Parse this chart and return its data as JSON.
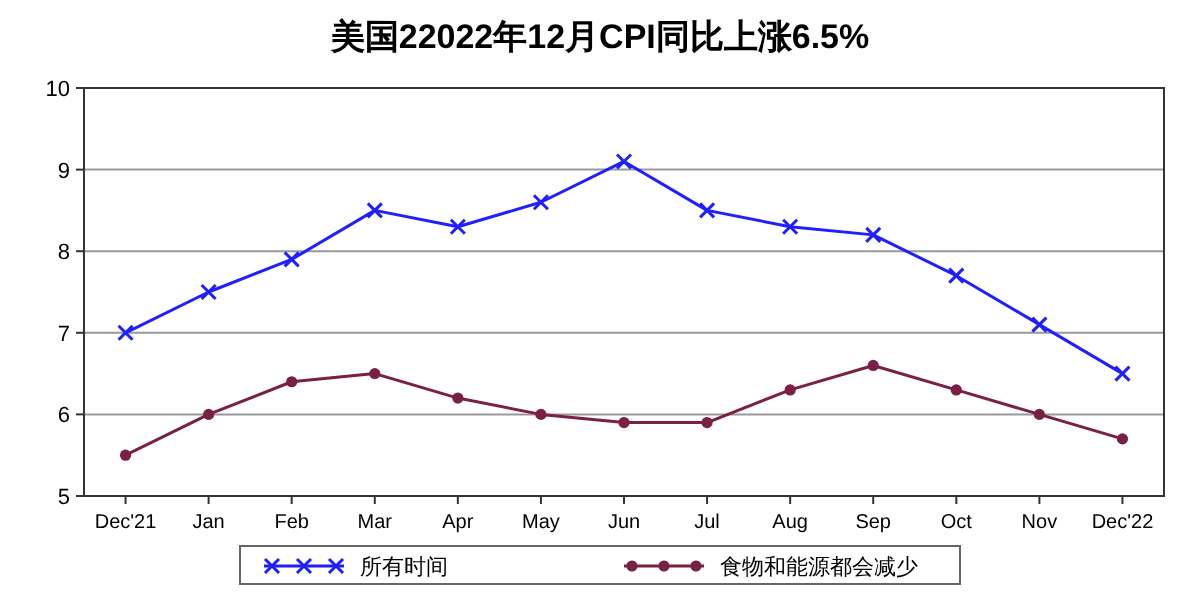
{
  "chart_data": {
    "type": "line",
    "title": "美国22022年12月CPI同比上涨6.5%",
    "categories": [
      "Dec'21",
      "Jan",
      "Feb",
      "Mar",
      "Apr",
      "May",
      "Jun",
      "Jul",
      "Aug",
      "Sep",
      "Oct",
      "Nov",
      "Dec'22"
    ],
    "series": [
      {
        "name": "所有时间",
        "color": "#1f1fff",
        "marker": "cross",
        "values": [
          7.0,
          7.5,
          7.9,
          8.5,
          8.3,
          8.6,
          9.1,
          8.5,
          8.3,
          8.2,
          7.7,
          7.1,
          6.5
        ]
      },
      {
        "name": "食物和能源都会减少",
        "color": "#7a1f45",
        "marker": "circle",
        "values": [
          5.5,
          6.0,
          6.4,
          6.5,
          6.2,
          6.0,
          5.9,
          5.9,
          6.3,
          6.6,
          6.3,
          6.0,
          5.7
        ]
      }
    ],
    "ylim": [
      5,
      10
    ],
    "yticks": [
      5,
      6,
      7,
      8,
      9,
      10
    ],
    "grid": "y",
    "legend": "bottom",
    "line_style": "solid"
  }
}
